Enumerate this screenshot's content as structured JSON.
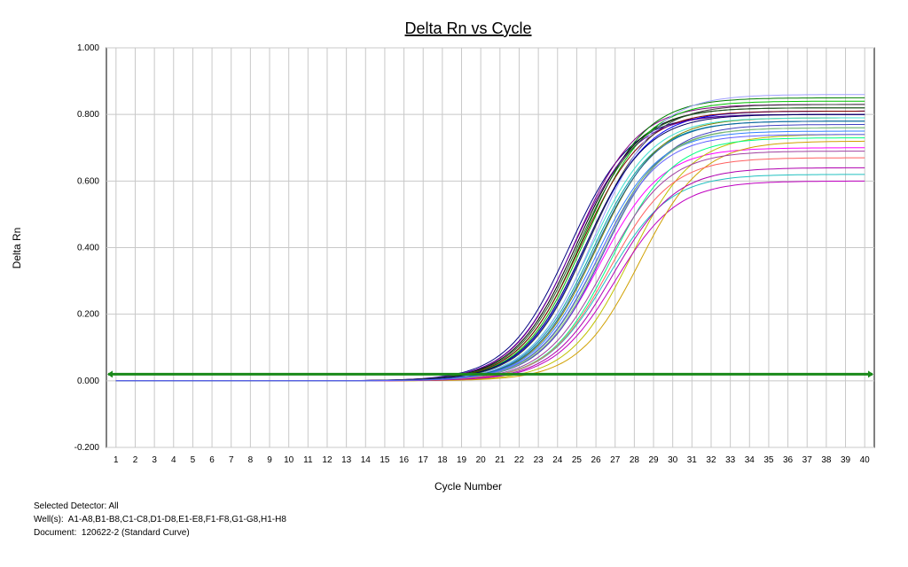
{
  "chart_data": {
    "type": "line",
    "title": "Delta Rn vs Cycle",
    "xlabel": "Cycle Number",
    "ylabel": "Delta Rn",
    "xlim": [
      0.5,
      40.5
    ],
    "ylim": [
      -0.2,
      1.0
    ],
    "x_ticks": [
      1,
      2,
      3,
      4,
      5,
      6,
      7,
      8,
      9,
      10,
      11,
      12,
      13,
      14,
      15,
      16,
      17,
      18,
      19,
      20,
      21,
      22,
      23,
      24,
      25,
      26,
      27,
      28,
      29,
      30,
      31,
      32,
      33,
      34,
      35,
      36,
      37,
      38,
      39,
      40
    ],
    "y_ticks": [
      "-0.200",
      "0.000",
      "0.200",
      "0.400",
      "0.600",
      "0.800",
      "1.000"
    ],
    "y_tick_values": [
      -0.2,
      0.0,
      0.2,
      0.4,
      0.6,
      0.8,
      1.0
    ],
    "grid": true,
    "threshold": 0.02,
    "threshold_color": "#1a8a1a",
    "series": [
      {
        "color": "#000080",
        "plateau": 0.8,
        "ct": 24.6
      },
      {
        "color": "#800080",
        "plateau": 0.83,
        "ct": 24.9
      },
      {
        "color": "#008000",
        "plateau": 0.85,
        "ct": 25.3
      },
      {
        "color": "#000000",
        "plateau": 0.82,
        "ct": 25.0
      },
      {
        "color": "#00a0a0",
        "plateau": 0.78,
        "ct": 25.8
      },
      {
        "color": "#ff00ff",
        "plateau": 0.7,
        "ct": 26.2
      },
      {
        "color": "#c0c000",
        "plateau": 0.74,
        "ct": 27.8
      },
      {
        "color": "#0000ff",
        "plateau": 0.81,
        "ct": 25.5
      },
      {
        "color": "#808000",
        "plateau": 0.79,
        "ct": 26.0
      },
      {
        "color": "#00c000",
        "plateau": 0.84,
        "ct": 25.4
      },
      {
        "color": "#800000",
        "plateau": 0.81,
        "ct": 25.2
      },
      {
        "color": "#4040c0",
        "plateau": 0.77,
        "ct": 26.4
      },
      {
        "color": "#20c0c0",
        "plateau": 0.62,
        "ct": 26.6
      },
      {
        "color": "#c000c0",
        "plateau": 0.6,
        "ct": 27.0
      },
      {
        "color": "#404040",
        "plateau": 0.83,
        "ct": 25.6
      },
      {
        "color": "#60a060",
        "plateau": 0.76,
        "ct": 26.2
      },
      {
        "color": "#d0a000",
        "plateau": 0.72,
        "ct": 28.3
      },
      {
        "color": "#6000a0",
        "plateau": 0.8,
        "ct": 24.8
      },
      {
        "color": "#00ff80",
        "plateau": 0.73,
        "ct": 26.8
      },
      {
        "color": "#a040a0",
        "plateau": 0.69,
        "ct": 26.5
      },
      {
        "color": "#3080ff",
        "plateau": 0.75,
        "ct": 26.0
      },
      {
        "color": "#ff6060",
        "plateau": 0.67,
        "ct": 26.7
      },
      {
        "color": "#40e0d0",
        "plateau": 0.79,
        "ct": 25.7
      },
      {
        "color": "#a0a0ff",
        "plateau": 0.86,
        "ct": 25.9
      },
      {
        "color": "#206020",
        "plateau": 0.82,
        "ct": 25.1
      },
      {
        "color": "#000060",
        "plateau": 0.8,
        "ct": 25.4
      },
      {
        "color": "#b000b0",
        "plateau": 0.64,
        "ct": 26.9
      },
      {
        "color": "#80c080",
        "plateau": 0.76,
        "ct": 26.3
      },
      {
        "color": "#1060a0",
        "plateau": 0.78,
        "ct": 25.9
      },
      {
        "color": "#6060ff",
        "plateau": 0.74,
        "ct": 26.1
      }
    ]
  },
  "info": {
    "line1": "Selected Detector: All",
    "line2": "Well(s):  A1-A8,B1-B8,C1-C8,D1-D8,E1-E8,F1-F8,G1-G8,H1-H8",
    "line3": "Document:  120622-2 (Standard Curve)"
  }
}
